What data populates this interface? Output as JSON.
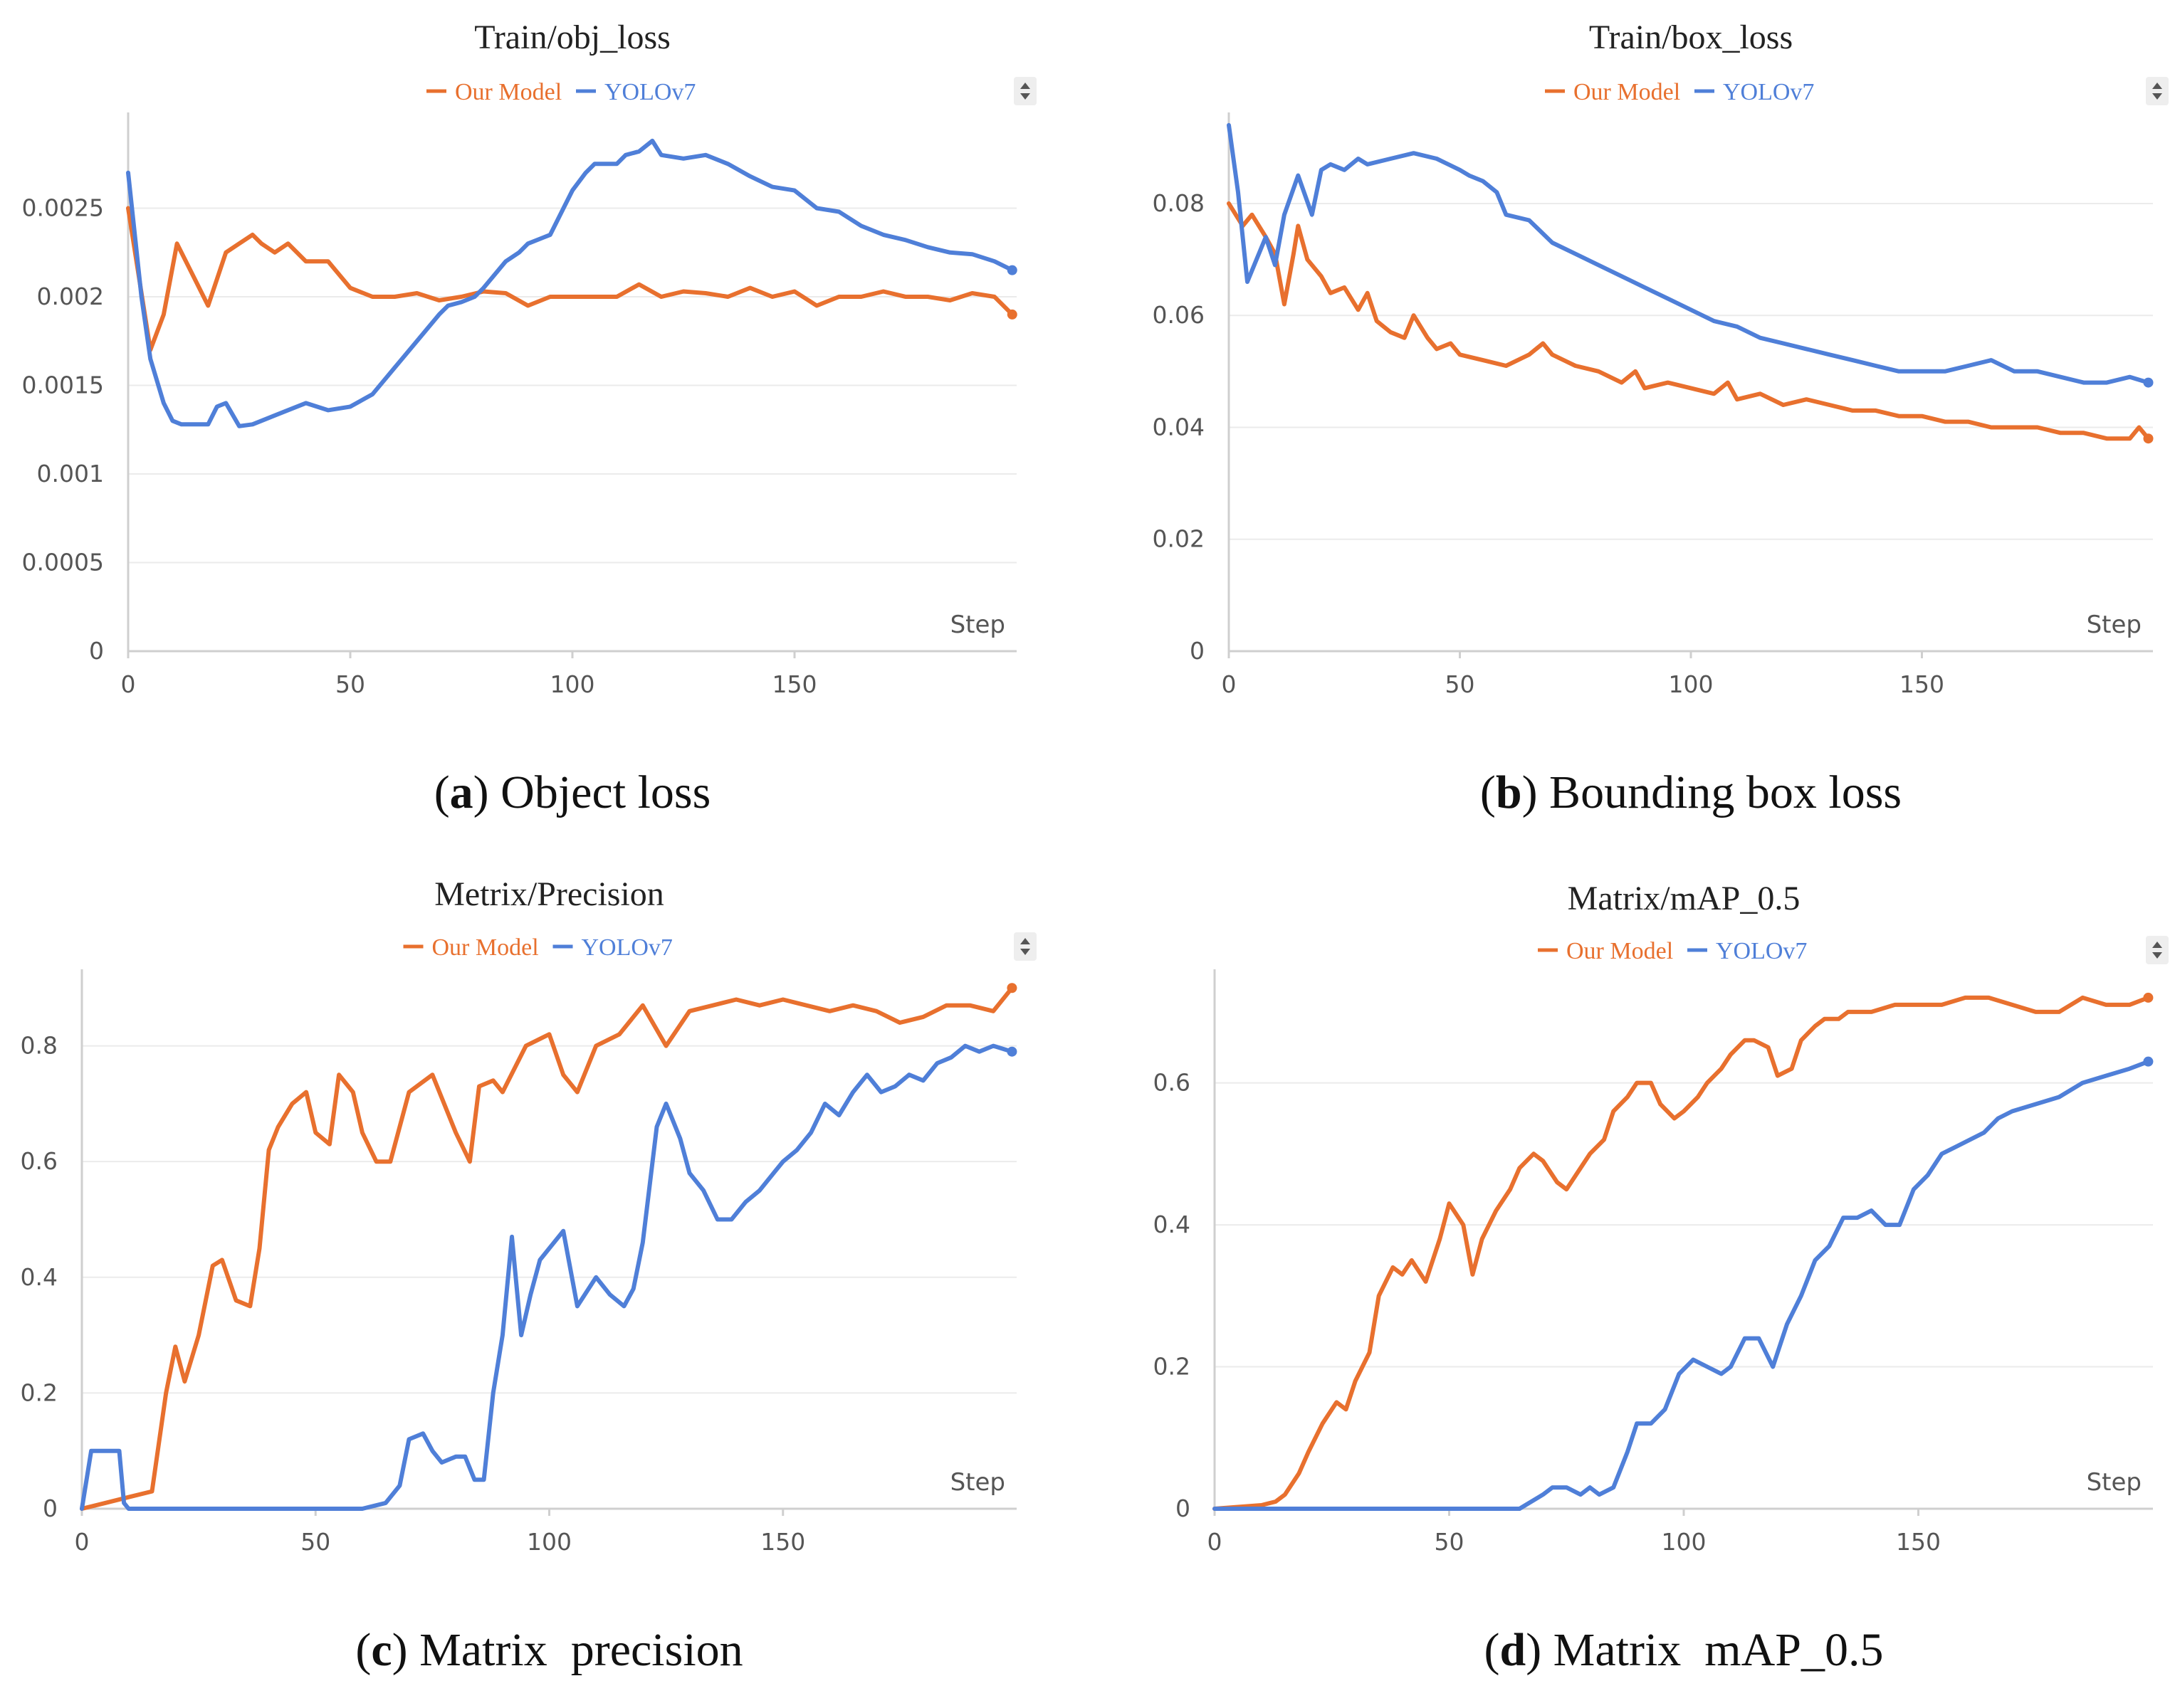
{
  "figure": {
    "step_label": "Step",
    "colors": {
      "our_model": "#e8702e",
      "yolov7": "#4f7fd8"
    },
    "legend": {
      "our_model": "Our Model",
      "yolov7": "YOLOv7"
    }
  },
  "chart_data": [
    {
      "id": "a",
      "type": "line",
      "title": "Train/obj_loss",
      "caption_letter": "a",
      "caption_text": "Object loss",
      "xlabel": "Step",
      "xlim": [
        0,
        200
      ],
      "ylim": [
        0,
        0.003
      ],
      "xticks": [
        0,
        50,
        100,
        150
      ],
      "yticks": [
        0,
        0.0005,
        0.001,
        0.0015,
        0.002,
        0.0025
      ],
      "ytick_labels": [
        "0",
        "0.0005",
        "0.001",
        "0.0015",
        "0.002",
        "0.0025"
      ],
      "series": [
        {
          "name": "Our Model",
          "key": "our_model",
          "x": [
            0,
            5,
            8,
            11,
            15,
            18,
            22,
            25,
            28,
            30,
            33,
            36,
            40,
            45,
            50,
            55,
            60,
            65,
            70,
            75,
            80,
            85,
            90,
            95,
            100,
            110,
            115,
            120,
            125,
            130,
            135,
            140,
            145,
            150,
            155,
            160,
            165,
            170,
            175,
            180,
            185,
            190,
            195,
            199
          ],
          "y": [
            0.0025,
            0.0017,
            0.0019,
            0.0023,
            0.0021,
            0.00195,
            0.00225,
            0.0023,
            0.00235,
            0.0023,
            0.00225,
            0.0023,
            0.0022,
            0.0022,
            0.00205,
            0.002,
            0.002,
            0.00202,
            0.00198,
            0.002,
            0.00203,
            0.00202,
            0.00195,
            0.002,
            0.002,
            0.002,
            0.00207,
            0.002,
            0.00203,
            0.00202,
            0.002,
            0.00205,
            0.002,
            0.00203,
            0.00195,
            0.002,
            0.002,
            0.00203,
            0.002,
            0.002,
            0.00198,
            0.00202,
            0.002,
            0.0019
          ]
        },
        {
          "name": "YOLOv7",
          "key": "yolov7",
          "x": [
            0,
            3,
            5,
            8,
            10,
            12,
            15,
            18,
            20,
            22,
            25,
            28,
            30,
            35,
            40,
            45,
            50,
            55,
            60,
            65,
            70,
            72,
            75,
            78,
            80,
            85,
            88,
            90,
            95,
            98,
            100,
            103,
            105,
            110,
            112,
            115,
            118,
            120,
            125,
            130,
            135,
            140,
            145,
            150,
            155,
            160,
            165,
            170,
            175,
            180,
            185,
            190,
            195,
            199
          ],
          "y": [
            0.0027,
            0.002,
            0.00165,
            0.0014,
            0.0013,
            0.00128,
            0.00128,
            0.00128,
            0.00138,
            0.0014,
            0.00127,
            0.00128,
            0.0013,
            0.00135,
            0.0014,
            0.00136,
            0.00138,
            0.00145,
            0.0016,
            0.00175,
            0.0019,
            0.00195,
            0.00197,
            0.002,
            0.00205,
            0.0022,
            0.00225,
            0.0023,
            0.00235,
            0.0025,
            0.0026,
            0.0027,
            0.00275,
            0.00275,
            0.0028,
            0.00282,
            0.00288,
            0.0028,
            0.00278,
            0.0028,
            0.00275,
            0.00268,
            0.00262,
            0.0026,
            0.0025,
            0.00248,
            0.0024,
            0.00235,
            0.00232,
            0.00228,
            0.00225,
            0.00224,
            0.0022,
            0.00215
          ]
        }
      ]
    },
    {
      "id": "b",
      "type": "line",
      "title": "Train/box_loss",
      "caption_letter": "b",
      "caption_text": "Bounding box loss",
      "xlabel": "Step",
      "xlim": [
        0,
        200
      ],
      "ylim": [
        0,
        0.095
      ],
      "xticks": [
        0,
        50,
        100,
        150
      ],
      "yticks": [
        0,
        0.02,
        0.04,
        0.06,
        0.08
      ],
      "ytick_labels": [
        "0",
        "0.02",
        "0.04",
        "0.06",
        "0.08"
      ],
      "series": [
        {
          "name": "Our Model",
          "key": "our_model",
          "x": [
            0,
            3,
            5,
            8,
            10,
            12,
            14,
            15,
            17,
            20,
            22,
            25,
            28,
            30,
            32,
            35,
            38,
            40,
            43,
            45,
            48,
            50,
            55,
            60,
            65,
            68,
            70,
            75,
            80,
            85,
            88,
            90,
            95,
            100,
            105,
            108,
            110,
            115,
            120,
            125,
            130,
            135,
            140,
            145,
            150,
            155,
            160,
            165,
            170,
            175,
            180,
            185,
            190,
            195,
            197,
            199
          ],
          "y": [
            0.08,
            0.076,
            0.078,
            0.074,
            0.071,
            0.062,
            0.071,
            0.076,
            0.07,
            0.067,
            0.064,
            0.065,
            0.061,
            0.064,
            0.059,
            0.057,
            0.056,
            0.06,
            0.056,
            0.054,
            0.055,
            0.053,
            0.052,
            0.051,
            0.053,
            0.055,
            0.053,
            0.051,
            0.05,
            0.048,
            0.05,
            0.047,
            0.048,
            0.047,
            0.046,
            0.048,
            0.045,
            0.046,
            0.044,
            0.045,
            0.044,
            0.043,
            0.043,
            0.042,
            0.042,
            0.041,
            0.041,
            0.04,
            0.04,
            0.04,
            0.039,
            0.039,
            0.038,
            0.038,
            0.04,
            0.038
          ]
        },
        {
          "name": "YOLOv7",
          "key": "yolov7",
          "x": [
            0,
            2,
            4,
            6,
            8,
            10,
            12,
            15,
            18,
            20,
            22,
            25,
            28,
            30,
            35,
            40,
            45,
            50,
            52,
            55,
            58,
            60,
            65,
            70,
            75,
            80,
            85,
            90,
            95,
            100,
            105,
            110,
            115,
            120,
            125,
            130,
            135,
            140,
            145,
            150,
            155,
            160,
            165,
            170,
            175,
            180,
            185,
            190,
            195,
            199
          ],
          "y": [
            0.094,
            0.082,
            0.066,
            0.07,
            0.074,
            0.069,
            0.078,
            0.085,
            0.078,
            0.086,
            0.087,
            0.086,
            0.088,
            0.087,
            0.088,
            0.089,
            0.088,
            0.086,
            0.085,
            0.084,
            0.082,
            0.078,
            0.077,
            0.073,
            0.071,
            0.069,
            0.067,
            0.065,
            0.063,
            0.061,
            0.059,
            0.058,
            0.056,
            0.055,
            0.054,
            0.053,
            0.052,
            0.051,
            0.05,
            0.05,
            0.05,
            0.051,
            0.052,
            0.05,
            0.05,
            0.049,
            0.048,
            0.048,
            0.049,
            0.048
          ]
        }
      ]
    },
    {
      "id": "c",
      "type": "line",
      "title": "Metrix/Precision",
      "caption_letter": "c",
      "caption_text": "Matrix  precision",
      "xlabel": "Step",
      "xlim": [
        0,
        200
      ],
      "ylim": [
        0,
        0.92
      ],
      "xticks": [
        0,
        50,
        100,
        150
      ],
      "yticks": [
        0,
        0.2,
        0.4,
        0.6,
        0.8
      ],
      "ytick_labels": [
        "0",
        "0.2",
        "0.4",
        "0.6",
        "0.8"
      ],
      "series": [
        {
          "name": "Our Model",
          "key": "our_model",
          "x": [
            0,
            5,
            10,
            15,
            18,
            20,
            22,
            25,
            28,
            30,
            33,
            36,
            38,
            40,
            42,
            45,
            48,
            50,
            53,
            55,
            58,
            60,
            63,
            66,
            70,
            75,
            80,
            83,
            85,
            88,
            90,
            95,
            100,
            103,
            106,
            110,
            115,
            120,
            125,
            130,
            135,
            140,
            145,
            150,
            155,
            160,
            165,
            170,
            175,
            180,
            185,
            190,
            195,
            199
          ],
          "y": [
            0,
            0.01,
            0.02,
            0.03,
            0.2,
            0.28,
            0.22,
            0.3,
            0.42,
            0.43,
            0.36,
            0.35,
            0.45,
            0.62,
            0.66,
            0.7,
            0.72,
            0.65,
            0.63,
            0.75,
            0.72,
            0.65,
            0.6,
            0.6,
            0.72,
            0.75,
            0.65,
            0.6,
            0.73,
            0.74,
            0.72,
            0.8,
            0.82,
            0.75,
            0.72,
            0.8,
            0.82,
            0.87,
            0.8,
            0.86,
            0.87,
            0.88,
            0.87,
            0.88,
            0.87,
            0.86,
            0.87,
            0.86,
            0.84,
            0.85,
            0.87,
            0.87,
            0.86,
            0.9
          ]
        },
        {
          "name": "YOLOv7",
          "key": "yolov7",
          "x": [
            0,
            2,
            5,
            6,
            7,
            8,
            9,
            10,
            20,
            40,
            60,
            65,
            68,
            70,
            73,
            75,
            77,
            80,
            82,
            84,
            86,
            88,
            90,
            92,
            94,
            96,
            98,
            100,
            103,
            106,
            110,
            113,
            116,
            118,
            120,
            123,
            125,
            128,
            130,
            133,
            136,
            139,
            142,
            145,
            148,
            150,
            153,
            156,
            159,
            162,
            165,
            168,
            171,
            174,
            177,
            180,
            183,
            186,
            189,
            192,
            195,
            199
          ],
          "y": [
            0,
            0.1,
            0.1,
            0.1,
            0.1,
            0.1,
            0.01,
            0,
            0,
            0,
            0,
            0.01,
            0.04,
            0.12,
            0.13,
            0.1,
            0.08,
            0.09,
            0.09,
            0.05,
            0.05,
            0.2,
            0.3,
            0.47,
            0.3,
            0.37,
            0.43,
            0.45,
            0.48,
            0.35,
            0.4,
            0.37,
            0.35,
            0.38,
            0.46,
            0.66,
            0.7,
            0.64,
            0.58,
            0.55,
            0.5,
            0.5,
            0.53,
            0.55,
            0.58,
            0.6,
            0.62,
            0.65,
            0.7,
            0.68,
            0.72,
            0.75,
            0.72,
            0.73,
            0.75,
            0.74,
            0.77,
            0.78,
            0.8,
            0.79,
            0.8,
            0.79
          ]
        }
      ]
    },
    {
      "id": "d",
      "type": "line",
      "title": "Matrix/mAP_0.5",
      "caption_letter": "d",
      "caption_text": "Matrix  mAP_0.5",
      "xlabel": "Step",
      "xlim": [
        0,
        200
      ],
      "ylim": [
        0,
        0.75
      ],
      "xticks": [
        0,
        50,
        100,
        150
      ],
      "yticks": [
        0,
        0.2,
        0.4,
        0.6
      ],
      "ytick_labels": [
        "0",
        "0.2",
        "0.4",
        "0.6"
      ],
      "series": [
        {
          "name": "Our Model",
          "key": "our_model",
          "x": [
            0,
            10,
            13,
            15,
            18,
            20,
            23,
            26,
            28,
            30,
            33,
            35,
            38,
            40,
            42,
            45,
            48,
            50,
            53,
            55,
            57,
            60,
            63,
            65,
            68,
            70,
            73,
            75,
            78,
            80,
            83,
            85,
            88,
            90,
            93,
            95,
            98,
            100,
            103,
            105,
            108,
            110,
            113,
            115,
            118,
            120,
            123,
            125,
            128,
            130,
            133,
            135,
            140,
            145,
            150,
            155,
            160,
            165,
            170,
            175,
            180,
            185,
            190,
            195,
            199
          ],
          "y": [
            0,
            0.005,
            0.01,
            0.02,
            0.05,
            0.08,
            0.12,
            0.15,
            0.14,
            0.18,
            0.22,
            0.3,
            0.34,
            0.33,
            0.35,
            0.32,
            0.38,
            0.43,
            0.4,
            0.33,
            0.38,
            0.42,
            0.45,
            0.48,
            0.5,
            0.49,
            0.46,
            0.45,
            0.48,
            0.5,
            0.52,
            0.56,
            0.58,
            0.6,
            0.6,
            0.57,
            0.55,
            0.56,
            0.58,
            0.6,
            0.62,
            0.64,
            0.66,
            0.66,
            0.65,
            0.61,
            0.62,
            0.66,
            0.68,
            0.69,
            0.69,
            0.7,
            0.7,
            0.71,
            0.71,
            0.71,
            0.72,
            0.72,
            0.71,
            0.7,
            0.7,
            0.72,
            0.71,
            0.71,
            0.72
          ]
        },
        {
          "name": "YOLOv7",
          "key": "yolov7",
          "x": [
            0,
            65,
            70,
            72,
            75,
            78,
            80,
            82,
            85,
            88,
            90,
            93,
            96,
            99,
            102,
            105,
            108,
            110,
            113,
            116,
            119,
            122,
            125,
            128,
            131,
            134,
            137,
            140,
            143,
            146,
            149,
            152,
            155,
            158,
            161,
            164,
            167,
            170,
            175,
            180,
            185,
            190,
            195,
            199
          ],
          "y": [
            0,
            0,
            0.02,
            0.03,
            0.03,
            0.02,
            0.03,
            0.02,
            0.03,
            0.08,
            0.12,
            0.12,
            0.14,
            0.19,
            0.21,
            0.2,
            0.19,
            0.2,
            0.24,
            0.24,
            0.2,
            0.26,
            0.3,
            0.35,
            0.37,
            0.41,
            0.41,
            0.42,
            0.4,
            0.4,
            0.45,
            0.47,
            0.5,
            0.51,
            0.52,
            0.53,
            0.55,
            0.56,
            0.57,
            0.58,
            0.6,
            0.61,
            0.62,
            0.63
          ]
        }
      ]
    }
  ]
}
